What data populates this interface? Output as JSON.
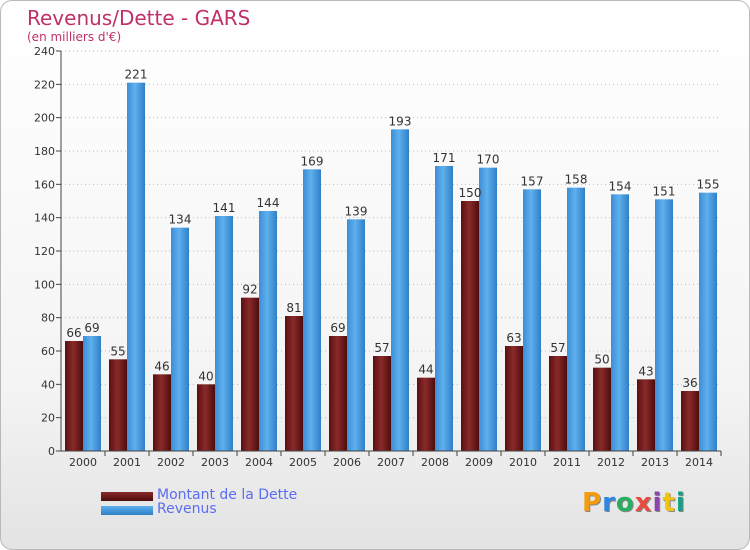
{
  "header": {
    "title": "Revenus/Dette - GARS",
    "subtitle": "(en milliers d'€)"
  },
  "legend": {
    "dette_label": "Montant de la Dette",
    "revenus_label": "Revenus"
  },
  "logo": {
    "text": "Proxiti",
    "colors": [
      "#f39c12",
      "#2e86de",
      "#27ae60",
      "#e74c3c",
      "#8e44ad",
      "#f1c40f",
      "#16a085"
    ]
  },
  "colors": {
    "dette": "#7a1e1e",
    "revenus": "#4a9fe0",
    "axis": "#444444",
    "grid": "#bdbdbd"
  },
  "chart_data": {
    "type": "bar",
    "categories": [
      "2000",
      "2001",
      "2002",
      "2003",
      "2004",
      "2005",
      "2006",
      "2007",
      "2008",
      "2009",
      "2010",
      "2011",
      "2012",
      "2013",
      "2014"
    ],
    "series": [
      {
        "name": "Montant de la Dette",
        "values": [
          66,
          55,
          46,
          40,
          92,
          81,
          69,
          57,
          44,
          150,
          63,
          57,
          50,
          43,
          36
        ]
      },
      {
        "name": "Revenus",
        "values": [
          69,
          221,
          134,
          141,
          144,
          169,
          139,
          193,
          171,
          170,
          157,
          158,
          154,
          151,
          155
        ]
      }
    ],
    "ylim": [
      0,
      240
    ],
    "yticks": [
      0,
      20,
      40,
      60,
      80,
      100,
      120,
      140,
      160,
      180,
      200,
      220,
      240
    ],
    "grid": true,
    "legend_position": "bottom-left"
  }
}
